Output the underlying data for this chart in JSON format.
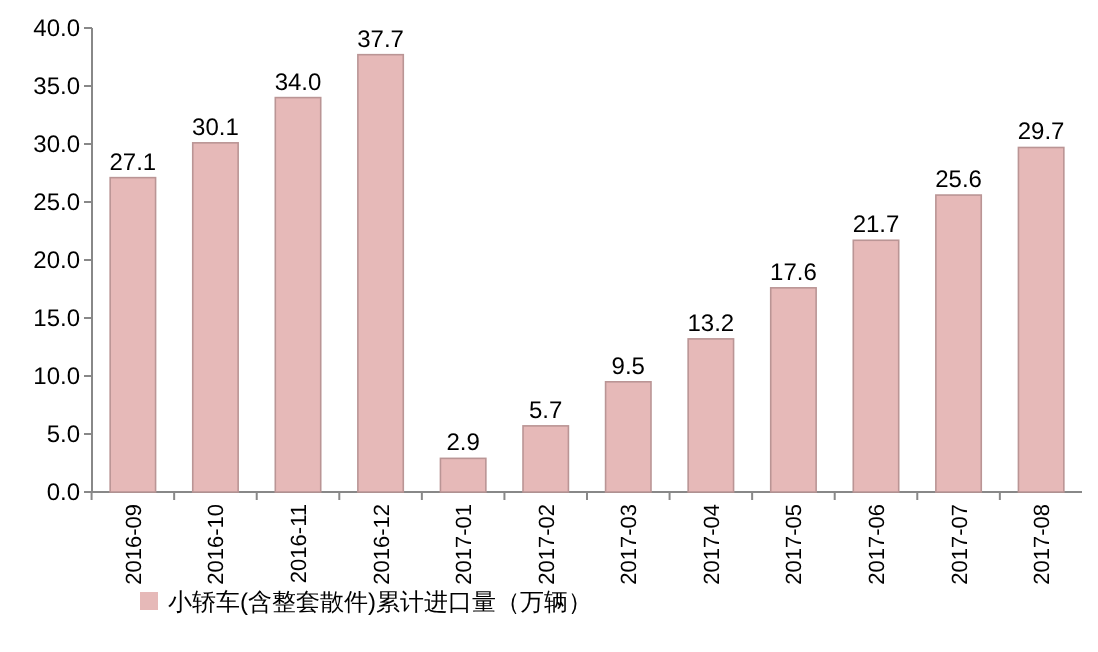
{
  "chart_data": {
    "type": "bar",
    "categories": [
      "2016-09",
      "2016-10",
      "2016-11",
      "2016-12",
      "2017-01",
      "2017-02",
      "2017-03",
      "2017-04",
      "2017-05",
      "2017-06",
      "2017-07",
      "2017-08"
    ],
    "series": [
      {
        "name": "小轿车(含整套散件)累计进口量（万辆）",
        "color": "#e6b9b8",
        "values": [
          27.1,
          30.1,
          34.0,
          37.7,
          2.9,
          5.7,
          9.5,
          13.2,
          17.6,
          21.7,
          25.6,
          29.7
        ]
      }
    ],
    "ylim": [
      0,
      40
    ],
    "yticks": [
      {
        "value": 0,
        "label": "0.0"
      },
      {
        "value": 5,
        "label": "5.0"
      },
      {
        "value": 10,
        "label": "10.0"
      },
      {
        "value": 15,
        "label": "15.0"
      },
      {
        "value": 20,
        "label": "20.0"
      },
      {
        "value": 25,
        "label": "25.0"
      },
      {
        "value": 30,
        "label": "30.0"
      },
      {
        "value": 35,
        "label": "35.0"
      },
      {
        "value": 40,
        "label": "40.0"
      }
    ],
    "value_labels": [
      "27.1",
      "30.1",
      "34.0",
      "37.7",
      "2.9",
      "5.7",
      "9.5",
      "13.2",
      "17.6",
      "21.7",
      "25.6",
      "29.7"
    ],
    "legend": "bottom left",
    "grid": false
  }
}
